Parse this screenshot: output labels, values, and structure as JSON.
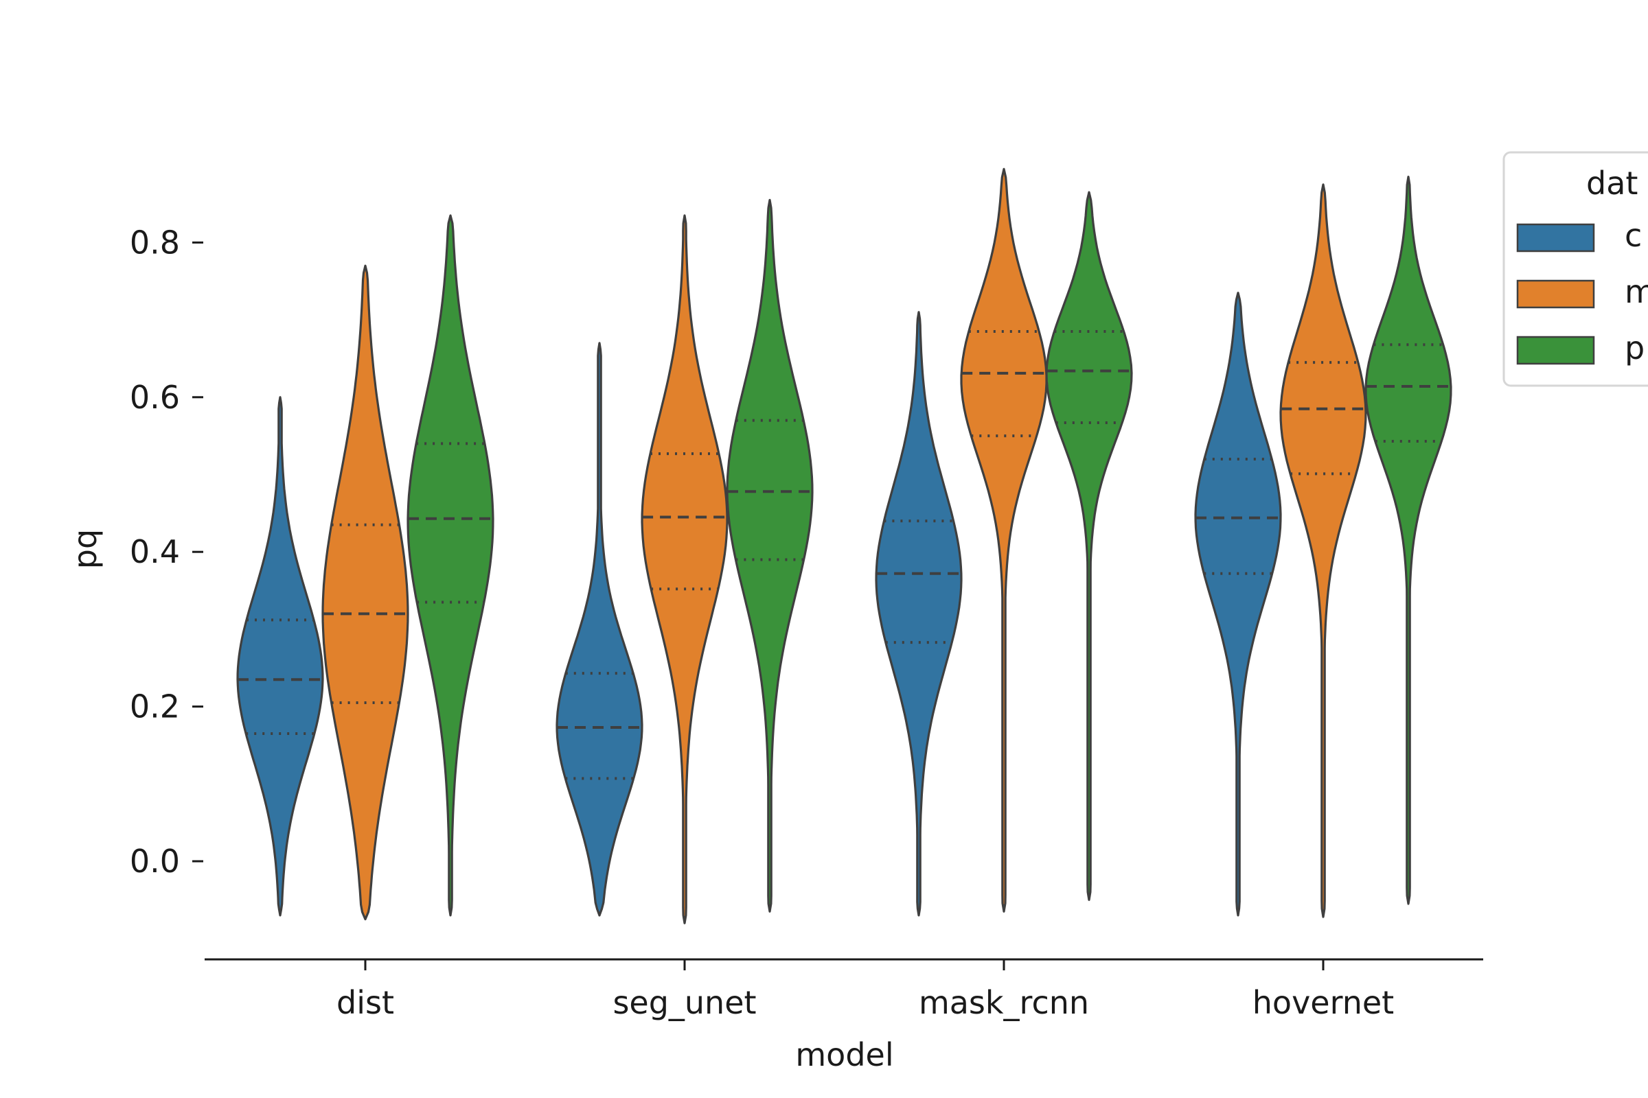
{
  "chart_data": {
    "type": "violin",
    "xlabel": "model",
    "ylabel": "pq",
    "yticks": [
      "0.0",
      "0.2",
      "0.4",
      "0.6",
      "0.8"
    ],
    "ytick_values": [
      0.0,
      0.2,
      0.4,
      0.6,
      0.8
    ],
    "ylim": [
      -0.12,
      1.05
    ],
    "categories": [
      "dist",
      "seg_unet",
      "mask_rcnn",
      "hovernet"
    ],
    "grid": false,
    "inner": "quartile",
    "legend": {
      "title": "dat",
      "placement": "right (partially cropped)",
      "entries": [
        "c",
        "m",
        "p"
      ]
    },
    "series": [
      {
        "legend_label": "c",
        "color": "#3274a1",
        "stats": [
          {
            "min": -0.07,
            "q1": 0.165,
            "median": 0.235,
            "q3": 0.312,
            "max": 0.6
          },
          {
            "min": -0.07,
            "q1": 0.107,
            "median": 0.173,
            "q3": 0.243,
            "max": 0.67
          },
          {
            "min": -0.07,
            "q1": 0.283,
            "median": 0.372,
            "q3": 0.44,
            "max": 0.71
          },
          {
            "min": -0.07,
            "q1": 0.372,
            "median": 0.444,
            "q3": 0.52,
            "max": 0.735
          }
        ]
      },
      {
        "legend_label": "m",
        "color": "#e1812c",
        "stats": [
          {
            "min": -0.075,
            "q1": 0.205,
            "median": 0.32,
            "q3": 0.435,
            "max": 0.77
          },
          {
            "min": -0.08,
            "q1": 0.352,
            "median": 0.445,
            "q3": 0.527,
            "max": 0.835
          },
          {
            "min": -0.065,
            "q1": 0.55,
            "median": 0.631,
            "q3": 0.685,
            "max": 0.895
          },
          {
            "min": -0.072,
            "q1": 0.501,
            "median": 0.585,
            "q3": 0.645,
            "max": 0.875
          }
        ]
      },
      {
        "legend_label": "p",
        "color": "#3a923a",
        "stats": [
          {
            "min": -0.07,
            "q1": 0.335,
            "median": 0.443,
            "q3": 0.54,
            "max": 0.835
          },
          {
            "min": -0.065,
            "q1": 0.39,
            "median": 0.478,
            "q3": 0.57,
            "max": 0.855
          },
          {
            "min": -0.05,
            "q1": 0.567,
            "median": 0.634,
            "q3": 0.685,
            "max": 0.865
          },
          {
            "min": -0.055,
            "q1": 0.543,
            "median": 0.614,
            "q3": 0.668,
            "max": 0.885
          }
        ]
      }
    ]
  }
}
